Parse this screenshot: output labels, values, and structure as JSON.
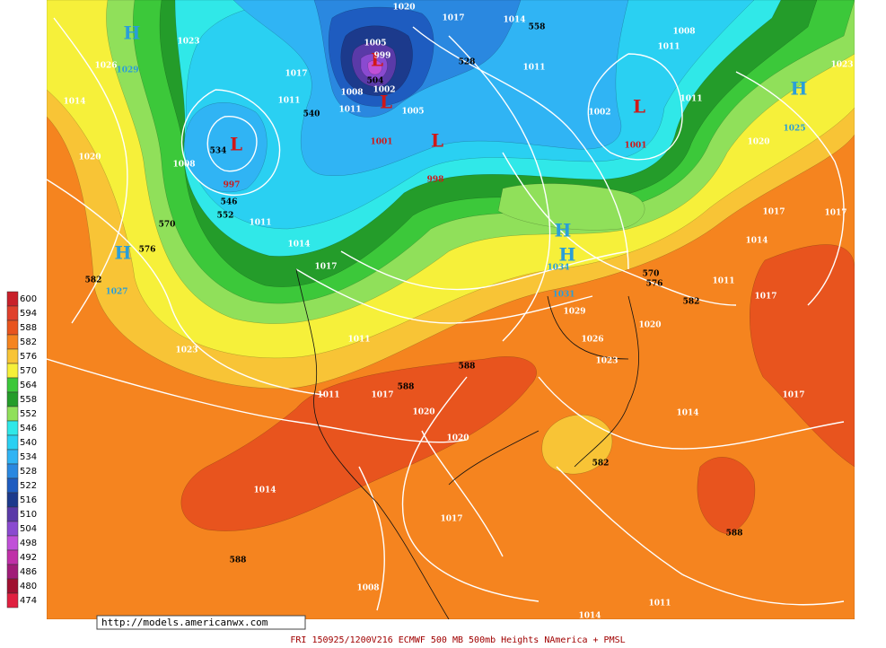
{
  "legend": {
    "labels": [
      "600",
      "594",
      "588",
      "582",
      "576",
      "570",
      "564",
      "558",
      "552",
      "546",
      "540",
      "534",
      "528",
      "522",
      "516",
      "510",
      "504",
      "498",
      "492",
      "486",
      "480",
      "474"
    ],
    "colors": [
      "#c8202a",
      "#e0402c",
      "#e8541e",
      "#f5841f",
      "#f8c436",
      "#f6f03a",
      "#3cc83a",
      "#249c2a",
      "#90e05a",
      "#30e8e8",
      "#2ad0f2",
      "#30b4f4",
      "#2a88e0",
      "#1e5cc0",
      "#1c3a8c",
      "#5a3aa8",
      "#8a4ad0",
      "#c050d8",
      "#c030a8",
      "#a01c78",
      "#a01030",
      "#e02040"
    ]
  },
  "high_centers": [
    "H",
    "H",
    "H",
    "H",
    "H"
  ],
  "low_centers": [
    "L",
    "L",
    "L",
    "L",
    "L"
  ],
  "high_values": [
    "1029",
    "1027",
    "1025",
    "1034",
    "1031"
  ],
  "low_values": [
    "997",
    "1001",
    "998",
    "1001"
  ],
  "isobar_labels": [
    "1026",
    "1014",
    "1020",
    "1023",
    "1008",
    "1017",
    "1011",
    "1011",
    "1014",
    "1017",
    "1005",
    "999",
    "1002",
    "1008",
    "1011",
    "1005",
    "1017",
    "1014",
    "1020",
    "1011",
    "1002",
    "1011",
    "1011",
    "1008",
    "1017",
    "1014",
    "1011",
    "1017",
    "1023",
    "1020",
    "1026",
    "1023",
    "1029",
    "1011",
    "1011",
    "1017",
    "1020",
    "1020",
    "1017",
    "1014",
    "1014",
    "1017",
    "1008",
    "1011",
    "1014",
    "1020",
    "1023",
    "1017"
  ],
  "height_labels": [
    "576",
    "582",
    "570",
    "588",
    "588",
    "582",
    "588",
    "588",
    "582",
    "576",
    "570",
    "534",
    "546",
    "552",
    "540",
    "504",
    "528",
    "558"
  ],
  "url": "http://models.americanwx.com",
  "footer": "FRI 150925/1200V216  ECMWF  500 MB 500mb Heights NAmerica + PMSL"
}
